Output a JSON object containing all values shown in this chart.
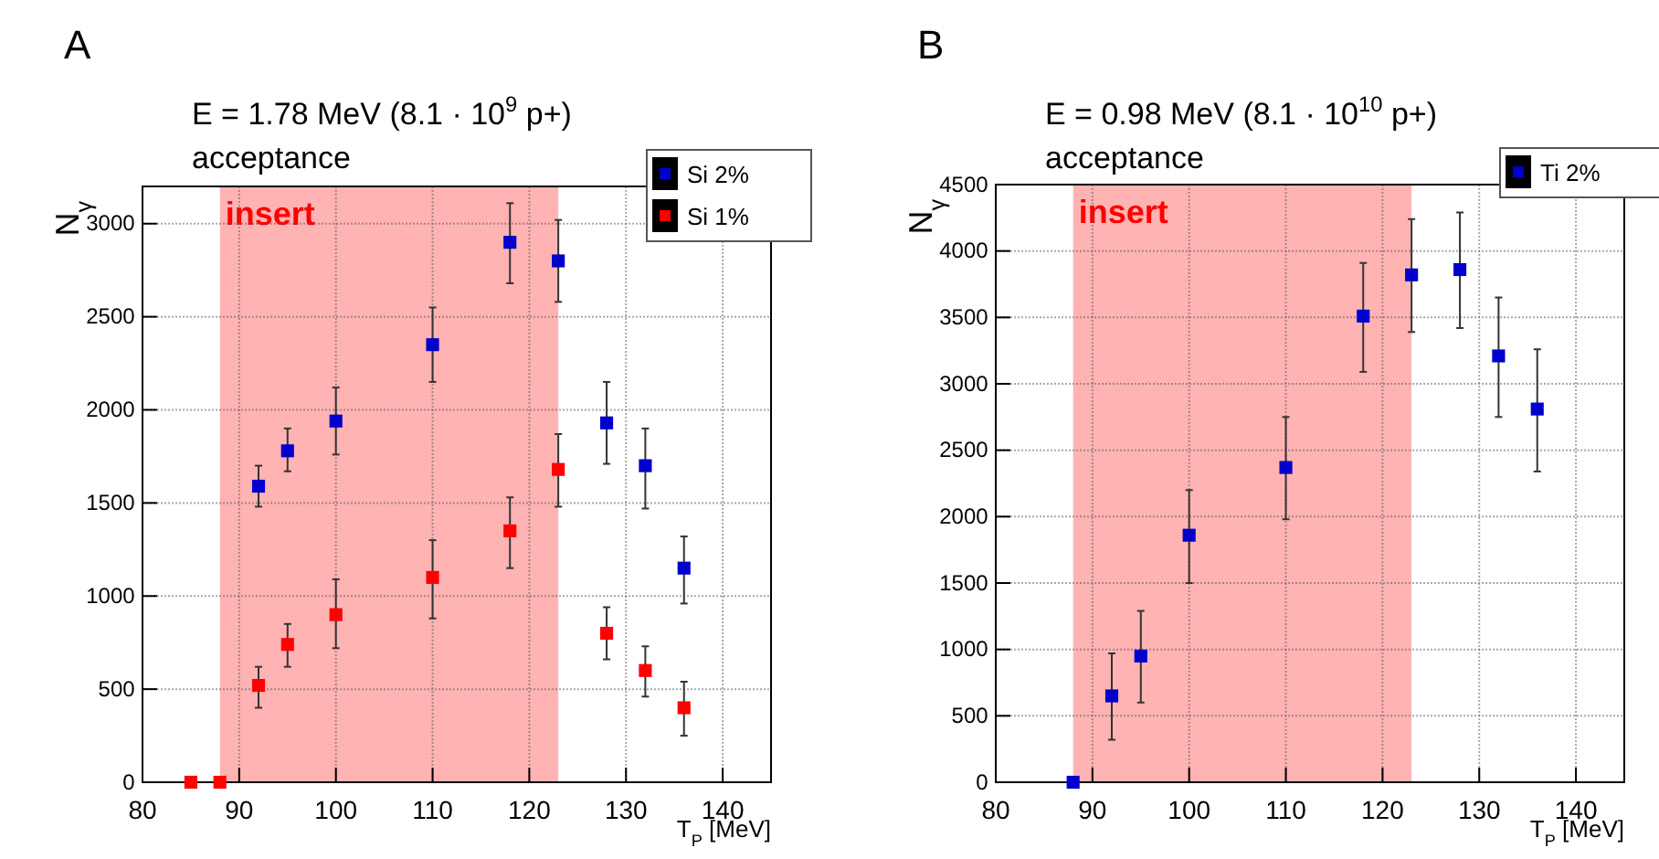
{
  "chart_data": [
    {
      "type": "scatter",
      "title": "E = 1.78 MeV (8.1  · 10$^{9}$ p+)",
      "subtitle": "acceptance",
      "xlabel": "T$_{P}$ [MeV]",
      "ylabel": "N$_{γ}$",
      "annotations": [
        "A"
      ],
      "xlim": [
        80,
        145
      ],
      "xticks": [
        80,
        90,
        100,
        110,
        120,
        130,
        140
      ],
      "ylim": [
        0,
        3200
      ],
      "yticks": [
        0,
        500,
        1000,
        1500,
        2000,
        2500,
        3000
      ],
      "grid": true,
      "legend": "top right",
      "marker": "square",
      "bands": [
        {
          "axis": "x",
          "from": 88,
          "to": 123,
          "label": "insert",
          "color": "#ffb3b3"
        }
      ],
      "series": [
        {
          "name": "Si 2%",
          "color": "#0000cc",
          "x": [
            92,
            95,
            100,
            110,
            118,
            123,
            128,
            132,
            136
          ],
          "values": [
            1590,
            1780,
            1940,
            2350,
            2900,
            2800,
            1930,
            1700,
            1150
          ],
          "errors": [
            [
              1480,
              1700
            ],
            [
              1670,
              1900
            ],
            [
              1760,
              2120
            ],
            [
              2150,
              2550
            ],
            [
              2680,
              3110
            ],
            [
              2580,
              3020
            ],
            [
              1710,
              2150
            ],
            [
              1470,
              1900
            ],
            [
              960,
              1320
            ]
          ]
        },
        {
          "name": "Si 1%",
          "color": "#ff0000",
          "x": [
            85,
            88,
            92,
            95,
            100,
            110,
            118,
            123,
            128,
            132,
            136
          ],
          "values": [
            0,
            0,
            520,
            740,
            900,
            1100,
            1350,
            1680,
            800,
            600,
            400
          ],
          "errors": [
            null,
            null,
            [
              400,
              620
            ],
            [
              620,
              850
            ],
            [
              720,
              1090
            ],
            [
              880,
              1300
            ],
            [
              1150,
              1530
            ],
            [
              1480,
              1870
            ],
            [
              660,
              940
            ],
            [
              460,
              730
            ],
            [
              250,
              540
            ]
          ]
        }
      ]
    },
    {
      "type": "scatter",
      "title": "E = 0.98 MeV (8.1  · 10$^{10}$ p+)",
      "subtitle": "acceptance",
      "xlabel": "T$_{P}$ [MeV]",
      "ylabel": "N$_{γ}$",
      "annotations": [
        "B"
      ],
      "xlim": [
        80,
        145
      ],
      "xticks": [
        80,
        90,
        100,
        110,
        120,
        130,
        140
      ],
      "ylim": [
        0,
        4500
      ],
      "yticks": [
        0,
        500,
        1000,
        1500,
        2000,
        2500,
        3000,
        3500,
        4000,
        4500
      ],
      "grid": true,
      "legend": "top right",
      "marker": "square",
      "bands": [
        {
          "axis": "x",
          "from": 88,
          "to": 123,
          "label": "insert",
          "color": "#ffb3b3"
        }
      ],
      "series": [
        {
          "name": "Ti 2%",
          "color": "#0000cc",
          "x": [
            88,
            92,
            95,
            100,
            110,
            118,
            123,
            128,
            132,
            136
          ],
          "values": [
            0,
            650,
            950,
            1860,
            2370,
            3510,
            3820,
            3860,
            3210,
            2810
          ],
          "errors": [
            null,
            [
              320,
              970
            ],
            [
              600,
              1290
            ],
            [
              1500,
              2200
            ],
            [
              1980,
              2750
            ],
            [
              3090,
              3910
            ],
            [
              3390,
              4240
            ],
            [
              3420,
              4290
            ],
            [
              2750,
              3650
            ],
            [
              2340,
              3260
            ]
          ]
        }
      ]
    }
  ]
}
